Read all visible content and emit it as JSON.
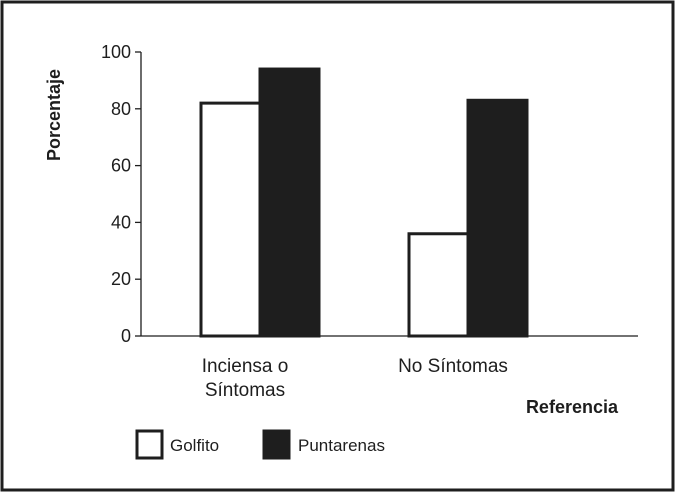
{
  "colors": {
    "series_1_fill": "#ffffff",
    "series_2_fill": "#1e1e1e",
    "stroke": "#1e1e1e",
    "background": "#ffffff"
  },
  "chart_data": {
    "type": "bar",
    "title": "",
    "xlabel": "Referencia",
    "ylabel": "Porcentaje",
    "ylim": [
      0,
      100
    ],
    "yticks": [
      0,
      20,
      40,
      60,
      80,
      100
    ],
    "ytick_labels": [
      "0",
      "20",
      "40",
      "60",
      "80",
      "100"
    ],
    "categories": [
      [
        "Inciensa o",
        "Síntomas"
      ],
      [
        "No Síntomas"
      ]
    ],
    "series": [
      {
        "name": "Golfito",
        "values": [
          82,
          36
        ]
      },
      {
        "name": "Puntarenas",
        "values": [
          94,
          83
        ]
      }
    ],
    "legend_position": "bottom-left",
    "grid": false
  }
}
